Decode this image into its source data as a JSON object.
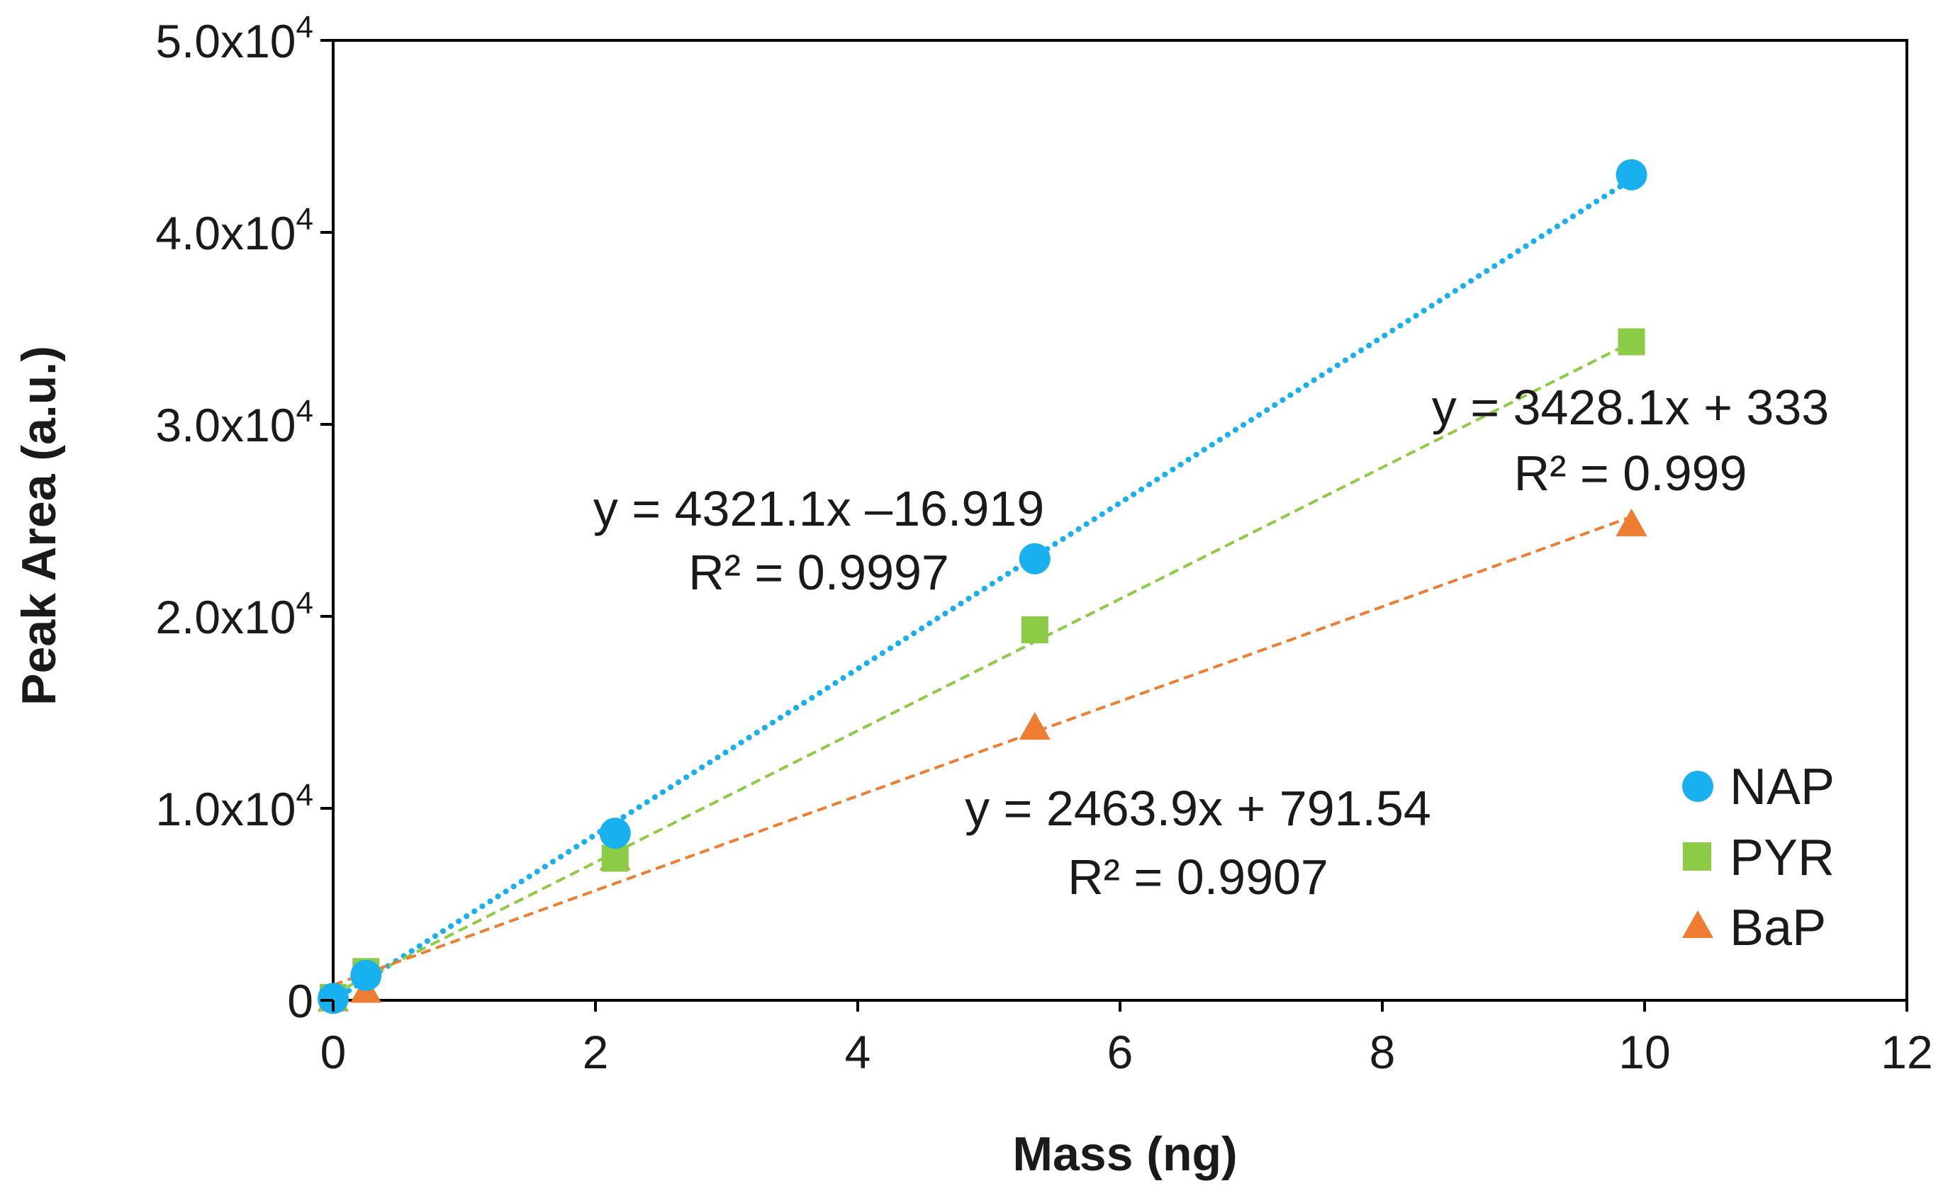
{
  "chart_data": {
    "type": "scatter",
    "title": "",
    "xlabel": "Mass (ng)",
    "ylabel": "Peak Area (a.u.)",
    "xlim": [
      0,
      12
    ],
    "ylim": [
      0,
      50000
    ],
    "x_ticks": [
      0,
      2,
      4,
      6,
      8,
      10,
      12
    ],
    "x_tick_labels": [
      "0",
      "2",
      "4",
      "6",
      "8",
      "10",
      "12"
    ],
    "y_ticks": [
      0,
      10000,
      20000,
      30000,
      40000,
      50000
    ],
    "y_tick_labels": [
      {
        "mant": "0",
        "exp": ""
      },
      {
        "mant": "1.0x10",
        "exp": "4"
      },
      {
        "mant": "2.0x10",
        "exp": "4"
      },
      {
        "mant": "3.0x10",
        "exp": "4"
      },
      {
        "mant": "4.0x10",
        "exp": "4"
      },
      {
        "mant": "5.0x10",
        "exp": "4"
      }
    ],
    "grid": false,
    "legend_position": "bottom-right",
    "series": [
      {
        "name": "NAP",
        "marker": "circle",
        "color": "#18B0EE",
        "trend_style": "dotted",
        "x": [
          0.0,
          0.25,
          2.15,
          5.35,
          9.9
        ],
        "y": [
          100,
          1300,
          8700,
          23000,
          43000
        ],
        "trendline": {
          "slope": 4321.1,
          "intercept": -16.919
        },
        "equation": "y = 4321.1x –16.919",
        "r2": "R² = 0.9997"
      },
      {
        "name": "PYR",
        "marker": "square",
        "color": "#8CCB45",
        "trend_style": "dashed",
        "x": [
          0.0,
          0.25,
          2.15,
          5.35,
          9.9
        ],
        "y": [
          150,
          1500,
          7400,
          19300,
          34300
        ],
        "trendline": {
          "slope": 3428.1,
          "intercept": 333
        },
        "equation": "y = 3428.1x + 333",
        "r2": "R² = 0.999"
      },
      {
        "name": "BaP",
        "marker": "triangle",
        "color": "#EE7D31",
        "trend_style": "dashed",
        "x": [
          0.0,
          0.25,
          2.15,
          5.35,
          9.9
        ],
        "y": [
          50,
          500,
          7400,
          14200,
          24800
        ],
        "trendline": {
          "slope": 2463.9,
          "intercept": 791.54
        },
        "equation": "y = 2463.9x + 791.54",
        "r2": "R² = 0.9907"
      }
    ]
  }
}
